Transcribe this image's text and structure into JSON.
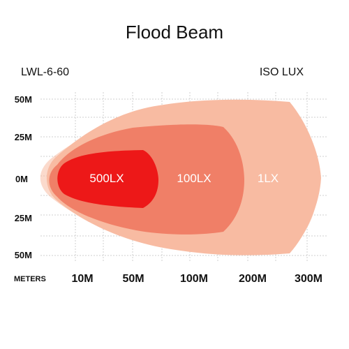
{
  "chart_data": {
    "type": "area",
    "title": "Flood Beam",
    "model": "LWL-6-60",
    "chart_kind_label": "ISO LUX",
    "x_unit_label": "METERS",
    "x_ticks": [
      "10M",
      "50M",
      "100M",
      "200M",
      "300M"
    ],
    "y_ticks": [
      "50M",
      "25M",
      "0M",
      "25M",
      "50M"
    ],
    "grid": true,
    "zones": [
      {
        "label": "1LX",
        "color": "#f8bba2"
      },
      {
        "label": "100LX",
        "color": "#f07f67"
      },
      {
        "label": "500LX",
        "color": "#ed1818"
      }
    ]
  }
}
